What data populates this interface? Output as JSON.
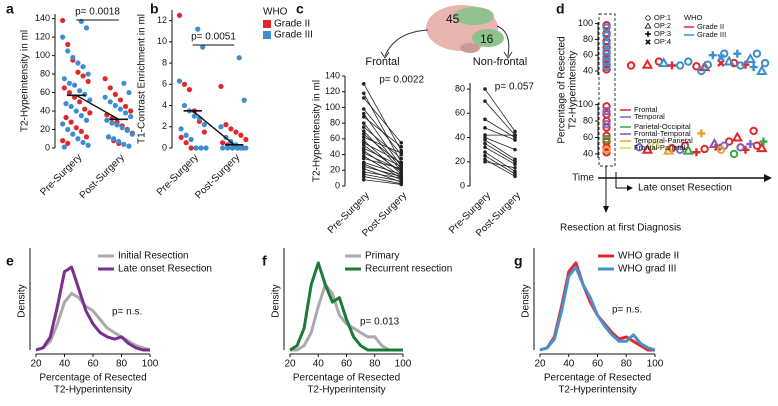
{
  "chart_data": [
    {
      "type": "strip",
      "panel": "a",
      "ylabel": [
        "T2-Hyperintensity in ml"
      ],
      "categories": [
        "Pre-Surgery",
        "Post-Surgery"
      ],
      "ylim": [
        0,
        145
      ],
      "yticks": [
        0,
        20,
        40,
        60,
        80,
        100,
        120,
        140
      ],
      "annotation": "p= 0.0018",
      "means": [
        57,
        31
      ],
      "series": [
        {
          "name": "Grade II",
          "color": "#e4262c",
          "values": [
            [
              138,
              112,
              95,
              82,
              78,
              72,
              65,
              60,
              55,
              50,
              42,
              38,
              33,
              28,
              22,
              18,
              12,
              8,
              5
            ],
            [
              75,
              65,
              58,
              52,
              45,
              40,
              36,
              32,
              28,
              24,
              20,
              16,
              12,
              8,
              5
            ]
          ]
        },
        {
          "name": "Grade III",
          "color": "#3b8ed0",
          "values": [
            [
              137,
              130,
              120,
              105,
              98,
              92,
              88,
              80,
              75,
              70,
              68,
              62,
              58,
              52,
              48,
              45,
              40,
              35,
              30,
              26,
              20,
              15,
              10,
              6,
              3,
              1
            ],
            [
              70,
              60,
              55,
              50,
              46,
              42,
              38,
              34,
              30,
              27,
              25,
              22,
              19,
              15,
              12,
              10,
              7,
              4,
              2
            ]
          ]
        }
      ]
    },
    {
      "type": "strip",
      "panel": "b",
      "ylabel": [
        "T1-Contrast Enrichment in ml"
      ],
      "categories": [
        "Pre-Surgery",
        "Post-Surgery"
      ],
      "ylim": [
        0,
        13
      ],
      "yticks": [
        0,
        2,
        4,
        6,
        8,
        10,
        12
      ],
      "annotation": "p= 0.0051",
      "means": [
        3.5,
        0.3
      ],
      "legend_title": "WHO",
      "series": [
        {
          "name": "Grade II",
          "color": "#e4262c",
          "values": [
            [
              12.5,
              6,
              5.5,
              3.5,
              2.5,
              1.5,
              1.0,
              0.5,
              0,
              0
            ],
            [
              5.8,
              2.2,
              1.8,
              1.5,
              1.2,
              0.8,
              0.5,
              0.3,
              0,
              0,
              0
            ]
          ]
        },
        {
          "name": "Grade III",
          "color": "#3b8ed0",
          "values": [
            [
              11.2,
              9.5,
              6.3,
              4,
              3.5,
              3,
              2.8,
              2.2,
              1.8,
              1.2,
              0.8,
              0,
              0,
              0
            ],
            [
              8.5,
              4.5,
              2,
              1,
              0.6,
              0.3,
              0,
              0,
              0,
              0,
              0,
              0
            ]
          ]
        }
      ]
    },
    {
      "type": "paired",
      "panel": "c",
      "title": "Frontal",
      "brain_counts": [
        45,
        16
      ],
      "ylabel": [
        "T2-Hyperintensity in ml"
      ],
      "categories": [
        "Pre-Surgery",
        "Post-Surgery"
      ],
      "ylim": [
        0,
        140
      ],
      "yticks": [
        0,
        20,
        40,
        60,
        80,
        100,
        120,
        140
      ],
      "annotation": "p= 0.0022",
      "pairs": [
        [
          130,
          45
        ],
        [
          118,
          30
        ],
        [
          112,
          55
        ],
        [
          98,
          40
        ],
        [
          92,
          25
        ],
        [
          88,
          50
        ],
        [
          80,
          22
        ],
        [
          75,
          35
        ],
        [
          70,
          20
        ],
        [
          66,
          28
        ],
        [
          62,
          42
        ],
        [
          58,
          15
        ],
        [
          55,
          30
        ],
        [
          52,
          18
        ],
        [
          48,
          25
        ],
        [
          45,
          12
        ],
        [
          42,
          20
        ],
        [
          38,
          10
        ],
        [
          35,
          22
        ],
        [
          30,
          15
        ],
        [
          28,
          8
        ],
        [
          25,
          12
        ],
        [
          22,
          5
        ],
        [
          18,
          10
        ],
        [
          15,
          6
        ],
        [
          12,
          3
        ],
        [
          8,
          2
        ]
      ]
    },
    {
      "type": "paired",
      "title": "Non-frontal",
      "categories": [
        "Pre-Surgery",
        "Post-Surgery"
      ],
      "ylim": [
        0,
        85
      ],
      "yticks": [
        0,
        20,
        40,
        60,
        80
      ],
      "annotation": "p= 0.057",
      "pairs": [
        [
          80,
          45
        ],
        [
          70,
          42
        ],
        [
          55,
          40
        ],
        [
          48,
          38
        ],
        [
          42,
          42
        ],
        [
          40,
          30
        ],
        [
          38,
          22
        ],
        [
          35,
          20
        ],
        [
          32,
          18
        ],
        [
          28,
          12
        ],
        [
          25,
          10
        ],
        [
          22,
          8
        ],
        [
          20,
          15
        ]
      ]
    },
    {
      "type": "timeline",
      "panel": "d",
      "ylabel": [
        "Percentage of Resected",
        "T2-Hyperintensity"
      ],
      "xlim": [
        -4,
        100
      ],
      "time_label": "Time",
      "late_label": "Late onset Resection",
      "first_label": "Resection at first Diagnosis",
      "op_labels": [
        "OP:1",
        "OP:2",
        "OP:3",
        "OP:4"
      ],
      "legend_title": "WHO",
      "rows": [
        {
          "ylim": [
            35,
            102
          ],
          "yticks": [
            40,
            60,
            80,
            100
          ],
          "series": [
            {
              "name": "Grade II",
              "color": "#e4262c",
              "x": [
                0,
                0,
                0,
                0,
                0,
                0,
                0,
                0,
                15,
                25,
                32,
                40,
                55,
                60,
                70,
                78,
                85
              ],
              "values": [
                98,
                88,
                78,
                70,
                62,
                55,
                48,
                42,
                47,
                48,
                52,
                47,
                46,
                45,
                50,
                50,
                48
              ],
              "shapes": [
                1,
                1,
                1,
                1,
                1,
                1,
                1,
                1,
                1,
                2,
                1,
                3,
                1,
                2,
                4,
                1,
                3
              ]
            },
            {
              "name": "Grade III",
              "color": "#3b8ed0",
              "x": [
                0,
                0,
                0,
                0,
                0,
                0,
                0,
                35,
                45,
                50,
                58,
                62,
                65,
                70,
                72,
                75,
                80,
                82,
                88,
                90,
                92,
                95,
                97
              ],
              "values": [
                95,
                85,
                75,
                65,
                58,
                52,
                45,
                50,
                47,
                52,
                40,
                48,
                60,
                57,
                62,
                52,
                62,
                47,
                55,
                45,
                62,
                40,
                50
              ],
              "shapes": [
                1,
                1,
                1,
                1,
                1,
                1,
                1,
                2,
                1,
                1,
                1,
                1,
                3,
                4,
                1,
                2,
                3,
                1,
                2,
                3,
                1,
                2,
                1
              ]
            }
          ]
        },
        {
          "ylim": [
            35,
            102
          ],
          "yticks": [
            40,
            60,
            80,
            100
          ],
          "series": [
            {
              "name": "Frontal",
              "color": "#e4262c",
              "x": [
                0,
                0,
                0,
                0,
                0,
                0,
                0,
                0,
                25,
                40,
                48,
                55,
                60,
                68,
                75,
                80,
                85,
                90,
                92,
                95
              ],
              "values": [
                98,
                88,
                80,
                72,
                62,
                55,
                48,
                42,
                45,
                47,
                50,
                42,
                46,
                48,
                55,
                60,
                45,
                68,
                50,
                47
              ],
              "shapes": [
                1,
                1,
                1,
                1,
                1,
                1,
                1,
                1,
                2,
                1,
                1,
                3,
                1,
                4,
                1,
                2,
                3,
                1,
                1,
                2
              ]
            },
            {
              "name": "Temporal",
              "color": "#6b6bd8",
              "x": [
                0,
                0,
                20,
                45,
                72,
                88
              ],
              "values": [
                92,
                76,
                48,
                45,
                50,
                52
              ],
              "shapes": [
                1,
                1,
                1,
                1,
                1,
                3
              ]
            },
            {
              "name": "Parietal-Occipital",
              "color": "#3aa845",
              "x": [
                0,
                50,
                78,
                96
              ],
              "values": [
                58,
                44,
                40,
                55
              ],
              "shapes": [
                1,
                2,
                1,
                3
              ]
            },
            {
              "name": "Frontal-Temporal",
              "color": "#8c56b0",
              "x": [
                66,
                82
              ],
              "values": [
                52,
                48
              ],
              "shapes": [
                2,
                1
              ]
            },
            {
              "name": "Temporal-Parietal",
              "color": "#f0a030",
              "x": [
                0,
                38,
                58,
                70
              ],
              "values": [
                45,
                44,
                65,
                45
              ],
              "shapes": [
                1,
                2,
                3,
                1
              ]
            },
            {
              "name": "Frontal-Parietal",
              "color": "#e8d840",
              "x": [
                30
              ],
              "values": [
                50
              ],
              "shapes": [
                1
              ]
            }
          ]
        }
      ]
    },
    {
      "type": "density",
      "panel": "e",
      "ylabel": "Density",
      "xlabel": [
        "Percentage of Resected",
        "T2-Hyperintensity"
      ],
      "xlim": [
        20,
        100
      ],
      "xticks": [
        20,
        40,
        60,
        80,
        100
      ],
      "ylim": [
        0,
        0.045
      ],
      "annotation": "p= n.s.",
      "x": [
        20,
        25,
        30,
        35,
        40,
        45,
        50,
        55,
        60,
        65,
        70,
        75,
        80,
        85,
        90,
        95,
        100
      ],
      "series": [
        {
          "name": "Initial Resection",
          "color": "#aaaaaa",
          "values": [
            0,
            0.001,
            0.004,
            0.012,
            0.022,
            0.026,
            0.024,
            0.02,
            0.018,
            0.014,
            0.01,
            0.008,
            0.006,
            0.004,
            0.002,
            0.001,
            0
          ]
        },
        {
          "name": "Late onset Resection",
          "color": "#7b2e8e",
          "values": [
            0,
            0.001,
            0.006,
            0.02,
            0.036,
            0.038,
            0.028,
            0.018,
            0.012,
            0.008,
            0.006,
            0.005,
            0.006,
            0.003,
            0.001,
            0,
            0
          ]
        }
      ]
    },
    {
      "type": "density",
      "panel": "f",
      "ylabel": "Density",
      "xlabel": [
        "Percentage of Resected",
        "T2-Hyperintensity"
      ],
      "xlim": [
        20,
        100
      ],
      "xticks": [
        20,
        40,
        60,
        80,
        100
      ],
      "ylim": [
        0,
        0.045
      ],
      "annotation": "p= 0.013",
      "x": [
        20,
        25,
        30,
        35,
        40,
        45,
        50,
        55,
        60,
        65,
        70,
        75,
        80,
        85,
        90,
        95,
        100
      ],
      "series": [
        {
          "name": "Primary",
          "color": "#aaaaaa",
          "values": [
            0,
            0,
            0.002,
            0.008,
            0.02,
            0.03,
            0.026,
            0.016,
            0.012,
            0.01,
            0.008,
            0.006,
            0.006,
            0.002,
            0,
            0,
            0
          ]
        },
        {
          "name": "Recurrent resection",
          "color": "#1d7a3a",
          "values": [
            0,
            0.002,
            0.01,
            0.03,
            0.04,
            0.03,
            0.022,
            0.024,
            0.014,
            0.006,
            0.002,
            0,
            0,
            0,
            0,
            0,
            0
          ]
        }
      ]
    },
    {
      "type": "density",
      "panel": "g",
      "ylabel": "Density",
      "xlabel": [
        "Percentage of Resected",
        "T2-Hyperintensity"
      ],
      "xlim": [
        20,
        100
      ],
      "xticks": [
        20,
        40,
        60,
        80,
        100
      ],
      "ylim": [
        0,
        0.045
      ],
      "annotation": "p= n.s.",
      "x": [
        20,
        25,
        30,
        35,
        40,
        45,
        50,
        55,
        60,
        65,
        70,
        75,
        80,
        85,
        90,
        95,
        100
      ],
      "series": [
        {
          "name": "WHO grade II",
          "color": "#e4262c",
          "values": [
            0,
            0.001,
            0.006,
            0.02,
            0.036,
            0.04,
            0.03,
            0.022,
            0.016,
            0.012,
            0.008,
            0.005,
            0.006,
            0.004,
            0.002,
            0,
            0
          ]
        },
        {
          "name": "WHO grad III",
          "color": "#4a90c8",
          "values": [
            0,
            0.001,
            0.005,
            0.018,
            0.034,
            0.038,
            0.03,
            0.024,
            0.016,
            0.011,
            0.007,
            0.004,
            0.004,
            0.007,
            0.003,
            0.001,
            0
          ]
        }
      ]
    }
  ]
}
